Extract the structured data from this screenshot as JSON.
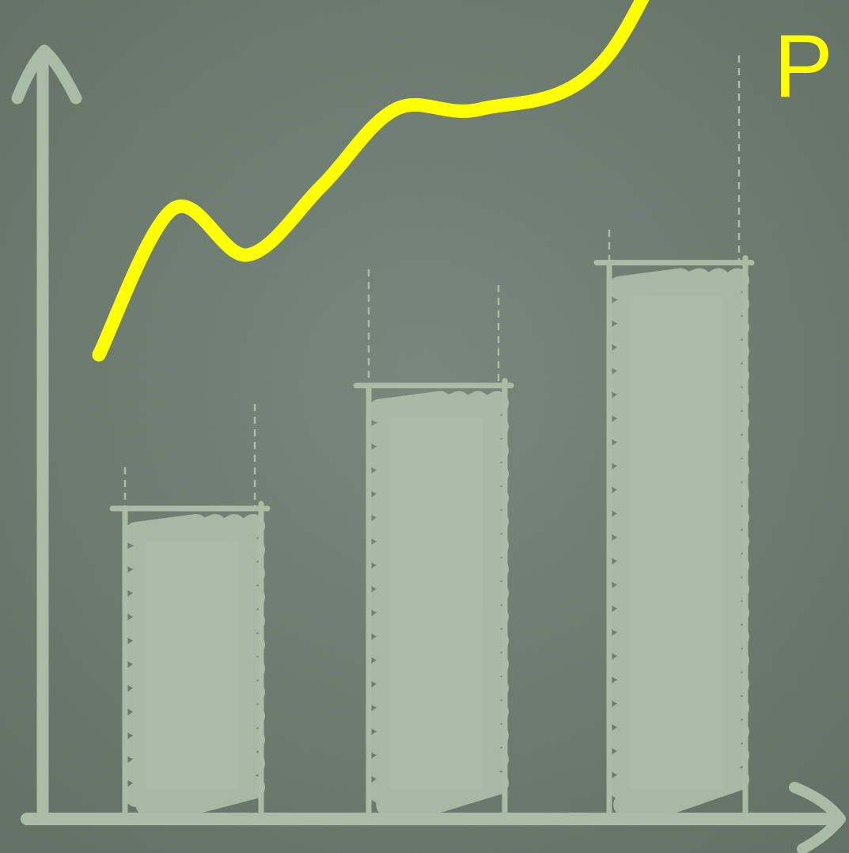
{
  "colors": {
    "board": "#6b7a6e",
    "chalk": "#a9bda6",
    "highlight": "#ffff00"
  },
  "peak_label": "P",
  "chart_data": {
    "type": "bar",
    "categories": [
      "",
      "",
      ""
    ],
    "values": [
      40,
      56,
      72
    ],
    "ylim": [
      0,
      100
    ],
    "grid": false,
    "legend": "none",
    "trend_line": {
      "type": "line",
      "x": [
        0.0,
        0.35,
        0.7,
        1.05,
        1.4,
        1.8,
        2.4,
        3.0
      ],
      "y": [
        60,
        79,
        73,
        82,
        92,
        92,
        99,
        134
      ],
      "arrow_end": true
    }
  }
}
